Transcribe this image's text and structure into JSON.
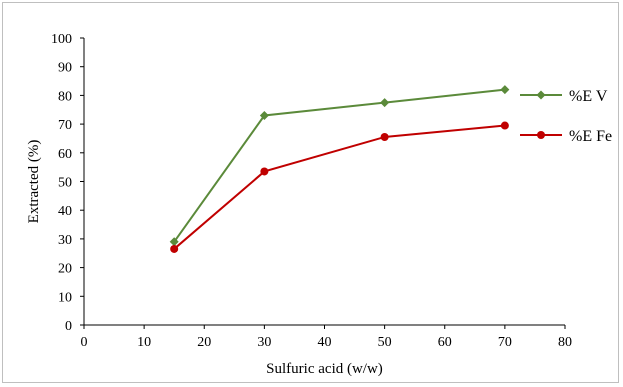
{
  "chart_data": {
    "type": "line",
    "xlabel": "Sulfuric acid (w/w)",
    "ylabel": "Extracted (%)",
    "xlim": [
      0,
      80
    ],
    "ylim": [
      0,
      100
    ],
    "xticks": [
      0,
      10,
      20,
      30,
      40,
      50,
      60,
      70,
      80
    ],
    "yticks": [
      0,
      10,
      20,
      30,
      40,
      50,
      60,
      70,
      80,
      90,
      100
    ],
    "grid": false,
    "legend_position": "right",
    "series": [
      {
        "name": "%E V",
        "color": "#5b8a3a",
        "marker": "diamond",
        "x": [
          15,
          30,
          50,
          70
        ],
        "y": [
          29,
          73,
          77.5,
          82
        ]
      },
      {
        "name": "%E Fe",
        "color": "#c00000",
        "marker": "circle",
        "x": [
          15,
          30,
          50,
          70
        ],
        "y": [
          26.5,
          53.5,
          65.5,
          69.5
        ]
      }
    ]
  }
}
